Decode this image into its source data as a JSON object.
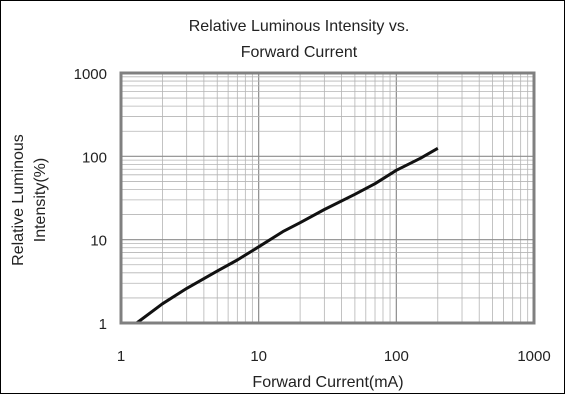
{
  "chart_data": {
    "type": "line",
    "title_lines": [
      "Relative Luminous Intensity vs.",
      "Forward Current"
    ],
    "xlabel": "Forward Current(mA)",
    "ylabel_lines": [
      "Relative Luminous",
      "Intensity(%)"
    ],
    "xscale": "log",
    "yscale": "log",
    "xlim": [
      1,
      1000
    ],
    "ylim": [
      1,
      1000
    ],
    "grid": true,
    "legend": "none",
    "x_ticks": [
      {
        "value": 1,
        "label": "1"
      },
      {
        "value": 10,
        "label": "10"
      },
      {
        "value": 100,
        "label": "100"
      },
      {
        "value": 1000,
        "label": "1000"
      }
    ],
    "y_ticks": [
      {
        "value": 1,
        "label": "1"
      },
      {
        "value": 10,
        "label": "10"
      },
      {
        "value": 100,
        "label": "100"
      },
      {
        "value": 1000,
        "label": "1000"
      }
    ],
    "series": [
      {
        "x": [
          1.3,
          2,
          3,
          5,
          7,
          10,
          15,
          20,
          30,
          50,
          70,
          100,
          150,
          200
        ],
        "y": [
          1,
          1.7,
          2.6,
          4.2,
          5.7,
          8.2,
          12.5,
          16,
          23,
          35,
          47,
          68,
          95,
          125
        ]
      }
    ],
    "colors": {
      "line": "#111111",
      "grid": "#b4b4b4",
      "major_grid": "#8c8c8c",
      "frame": "#808080",
      "text": "#222222"
    }
  }
}
